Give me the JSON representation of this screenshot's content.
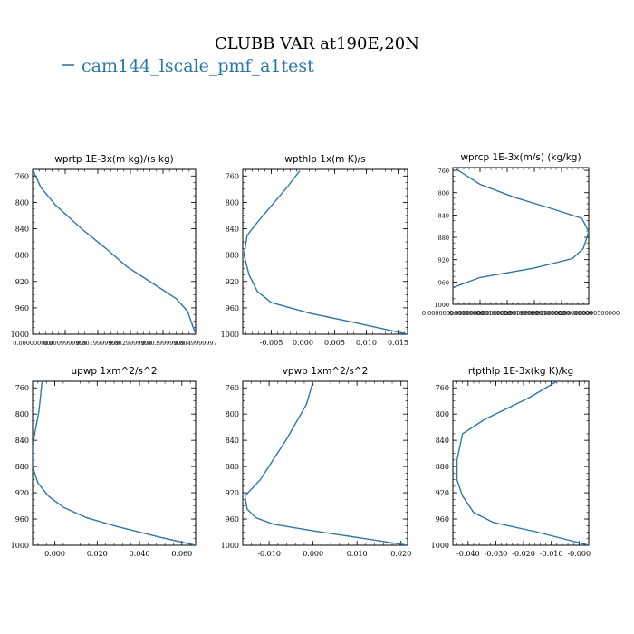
{
  "figure": {
    "title": "CLUBB VAR at190E,20N",
    "legend_label": "cam144_lscale_pmf_a1test",
    "series_color": "#2878b0"
  },
  "chart_data": [
    {
      "type": "line",
      "title": "wprtp  1E-3x(m kg)/(s kg)",
      "xlim": [
        0,
        1
      ],
      "ylim": [
        1000,
        750
      ],
      "yticks": [
        760,
        800,
        840,
        880,
        920,
        960,
        1000
      ],
      "xtick_labels": [
        "0.000000000",
        "0.0009999999",
        "0.0019999999",
        "0.0029999999",
        "0.0039999999",
        "0.0049999997"
      ],
      "series": [
        {
          "x": [
            0.0,
            0.05,
            0.14,
            0.3,
            0.45,
            0.58,
            0.75,
            0.88,
            0.95,
            1.0
          ],
          "y": [
            750,
            777,
            804,
            840,
            870,
            898,
            925,
            946,
            965,
            1000
          ]
        }
      ]
    },
    {
      "type": "line",
      "title": "wpthlp  1x(m K)/s",
      "xlim": [
        -0.0095,
        0.0165
      ],
      "ylim": [
        1000,
        750
      ],
      "yticks": [
        760,
        800,
        840,
        880,
        920,
        960,
        1000
      ],
      "xticks": [
        -0.005,
        0.0,
        0.005,
        0.01,
        0.015
      ],
      "xtick_labels": [
        "-0.005",
        "0.000",
        "0.005",
        "0.010",
        "0.015"
      ],
      "series": [
        {
          "x": [
            -0.0005,
            -0.0025,
            -0.007,
            -0.0088,
            -0.0093,
            -0.0085,
            -0.0072,
            -0.005,
            0.001,
            0.008,
            0.0165
          ],
          "y": [
            752,
            777,
            828,
            850,
            880,
            910,
            935,
            952,
            968,
            982,
            1000
          ]
        }
      ]
    },
    {
      "type": "line",
      "title": "wprcp  1E-3x(m/s) (kg/kg)",
      "xlim": [
        0,
        1
      ],
      "ylim": [
        1000,
        755
      ],
      "yticks": [
        760,
        800,
        840,
        880,
        920,
        960,
        1000
      ],
      "xtick_labels": [
        "0.000000000000000",
        "0.000000000100000",
        "0.000000000199999",
        "0.000000000300000",
        "0.000000000400000",
        "0.000000000500000"
      ],
      "series": [
        {
          "x": [
            0.02,
            0.2,
            0.45,
            0.72,
            0.95,
            1.0,
            0.96,
            0.88,
            0.6,
            0.2,
            0.0
          ],
          "y": [
            757,
            785,
            808,
            828,
            846,
            870,
            900,
            918,
            935,
            952,
            970
          ]
        }
      ]
    },
    {
      "type": "line",
      "title": "upwp  1xm^2/s^2",
      "xlim": [
        -0.0105,
        0.0665
      ],
      "ylim": [
        1000,
        750
      ],
      "yticks": [
        760,
        800,
        840,
        880,
        920,
        960,
        1000
      ],
      "xticks": [
        0.0,
        0.02,
        0.04,
        0.06
      ],
      "xtick_labels": [
        "0.000",
        "0.020",
        "0.040",
        "0.060"
      ],
      "series": [
        {
          "x": [
            -0.006,
            -0.0075,
            -0.0105,
            -0.0105,
            -0.008,
            -0.003,
            0.004,
            0.015,
            0.03,
            0.05,
            0.0665
          ],
          "y": [
            750,
            795,
            848,
            880,
            905,
            925,
            942,
            958,
            972,
            988,
            1000
          ]
        }
      ]
    },
    {
      "type": "line",
      "title": "vpwp  1xm^2/s^2",
      "xlim": [
        -0.016,
        0.0215
      ],
      "ylim": [
        1000,
        750
      ],
      "yticks": [
        760,
        800,
        840,
        880,
        920,
        960,
        1000
      ],
      "xticks": [
        -0.01,
        0.0,
        0.01,
        0.02
      ],
      "xtick_labels": [
        "-0.010",
        "0.000",
        "0.010",
        "0.020"
      ],
      "series": [
        {
          "x": [
            0.0,
            -0.0015,
            -0.006,
            -0.012,
            -0.0155,
            -0.015,
            -0.013,
            -0.009,
            0.0,
            0.012,
            0.0215
          ],
          "y": [
            750,
            785,
            838,
            900,
            925,
            945,
            958,
            968,
            978,
            990,
            1000
          ]
        }
      ]
    },
    {
      "type": "line",
      "title": "rtpthlp  1E-3x(kg K)/kg",
      "xlim": [
        -0.0455,
        0.0035
      ],
      "ylim": [
        1000,
        750
      ],
      "yticks": [
        760,
        800,
        840,
        880,
        920,
        960,
        1000
      ],
      "xticks": [
        -0.04,
        -0.03,
        -0.02,
        -0.01,
        -0.0
      ],
      "xtick_labels": [
        "-0.040",
        "-0.030",
        "-0.020",
        "-0.010",
        "-0.000"
      ],
      "series": [
        {
          "x": [
            -0.008,
            -0.018,
            -0.034,
            -0.042,
            -0.044,
            -0.044,
            -0.042,
            -0.038,
            -0.031,
            -0.015,
            0.0035
          ],
          "y": [
            750,
            775,
            808,
            830,
            870,
            900,
            925,
            950,
            965,
            980,
            1000
          ]
        }
      ]
    }
  ]
}
